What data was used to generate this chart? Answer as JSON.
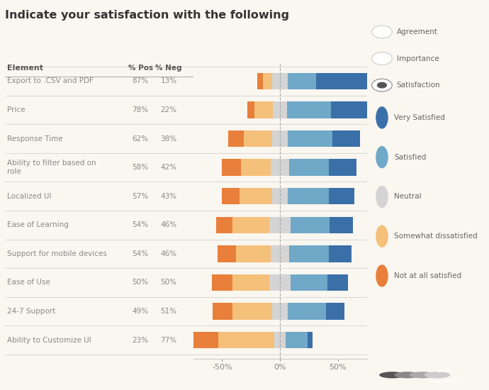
{
  "title": "Indicate your satisfaction with the following",
  "background_color": "#faf6f0",
  "categories": [
    "Export to .CSV and PDF",
    "Price",
    "Response Time",
    "Ability to filter based on\nrole",
    "Localized UI",
    "Ease of Learning",
    "Support for mobile devices",
    "Ease of Use",
    "24-7 Support",
    "Ability to Customize UI"
  ],
  "pct_pos": [
    87,
    78,
    62,
    58,
    57,
    54,
    54,
    50,
    49,
    23
  ],
  "pct_neg": [
    13,
    22,
    38,
    42,
    43,
    46,
    46,
    50,
    51,
    77
  ],
  "very_satisfied": [
    62,
    40,
    24,
    24,
    22,
    20,
    20,
    18,
    16,
    4
  ],
  "satisfied": [
    25,
    38,
    38,
    34,
    35,
    34,
    34,
    32,
    33,
    19
  ],
  "neutral": [
    13,
    12,
    14,
    16,
    14,
    18,
    16,
    18,
    14,
    10
  ],
  "somewhat_dissatisfied": [
    8,
    16,
    24,
    26,
    28,
    32,
    30,
    32,
    34,
    48
  ],
  "not_at_all_satisfied": [
    5,
    6,
    14,
    16,
    15,
    14,
    16,
    18,
    17,
    29
  ],
  "colors": {
    "very_satisfied": "#3a6fa8",
    "satisfied": "#70a8c8",
    "neutral": "#d4d4d4",
    "somewhat_dissatisfied": "#f5c07a",
    "not_at_all_satisfied": "#e87f3a"
  },
  "xlim": [
    -75,
    75
  ],
  "xtick_labels": [
    "-50%",
    "0%",
    "50%"
  ],
  "xtick_positions": [
    -50,
    0,
    50
  ]
}
